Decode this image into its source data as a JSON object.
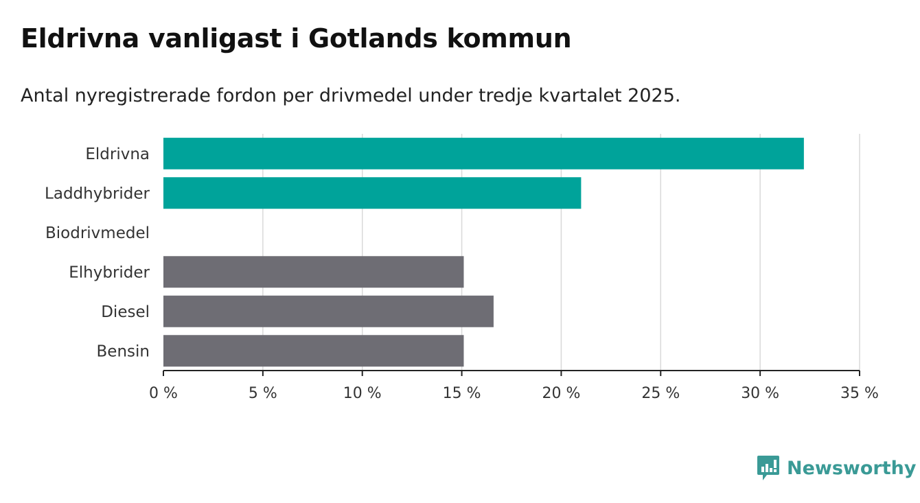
{
  "chart_data": {
    "type": "bar",
    "orientation": "horizontal",
    "title": "Eldrivna vanligast i Gotlands kommun",
    "subtitle": "Antal nyregistrerade fordon per drivmedel under tredje kvartalet 2025.",
    "categories": [
      "Eldrivna",
      "Laddhybrider",
      "Biodrivmedel",
      "Elhybrider",
      "Diesel",
      "Bensin"
    ],
    "values": [
      32.2,
      21.0,
      0,
      15.1,
      16.6,
      15.1
    ],
    "bar_colors": [
      "#00a39a",
      "#00a39a",
      "#6e6d74",
      "#6e6d74",
      "#6e6d74",
      "#6e6d74"
    ],
    "xlim": [
      0,
      35
    ],
    "xticks": [
      0,
      5,
      10,
      15,
      20,
      25,
      30,
      35
    ],
    "tick_labels": [
      "0 %",
      "5 %",
      "10 %",
      "15 %",
      "20 %",
      "25 %",
      "30 %",
      "35 %"
    ],
    "xlabel": "",
    "ylabel": "",
    "grid": true
  },
  "brand": {
    "name": "Newsworthy",
    "icon": "newsworthy-logo-icon",
    "color": "#3a9a96"
  }
}
